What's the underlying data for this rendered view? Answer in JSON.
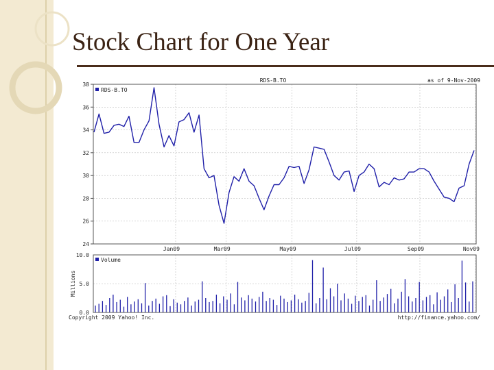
{
  "slide": {
    "title": "Stock Chart for One Year"
  },
  "chart_data": {
    "type": "line",
    "header_center": "RDS-B.TO",
    "header_right": "as of 9-Nov-2009",
    "legend_price": "RDS-B.TO",
    "legend_volume": "Volume",
    "footer_left": "Copyright 2009 Yahoo! Inc.",
    "footer_right": "http://finance.yahoo.com/",
    "price_axis": {
      "ylim": [
        24,
        38
      ],
      "ticks": [
        "38",
        "36",
        "34",
        "32",
        "30",
        "28",
        "26",
        "24"
      ],
      "tick_values": [
        38,
        36,
        34,
        32,
        30,
        28,
        26,
        24
      ]
    },
    "volume_axis": {
      "ylabel": "Millions",
      "ylim": [
        0,
        10
      ],
      "ticks": [
        "10.0",
        "5.0",
        "0.0"
      ],
      "tick_values": [
        10,
        5,
        0
      ]
    },
    "x_tick_labels": [
      "Jan09",
      "Mar09",
      "May09",
      "Jul09",
      "Sep09",
      "Nov09"
    ],
    "series": [
      {
        "values": [
          33.8,
          35.4,
          33.7,
          33.8,
          34.4,
          34.5,
          34.3,
          35.2,
          32.9,
          32.9,
          34.0,
          34.8,
          37.7,
          34.5,
          32.5,
          33.5,
          32.6,
          34.7,
          34.9,
          35.5,
          33.8,
          35.3,
          30.6,
          29.8,
          30.0,
          27.4,
          25.8,
          28.5,
          29.9,
          29.5,
          30.6,
          29.5,
          29.1,
          28.0,
          27.0,
          28.2,
          29.2,
          29.2,
          29.8,
          30.8,
          30.7,
          30.8,
          29.3,
          30.5,
          32.5,
          32.4,
          32.3,
          31.2,
          30.0,
          29.6,
          30.3,
          30.4,
          28.6,
          30.0,
          30.3,
          31.0,
          30.6,
          29.0,
          29.4,
          29.2,
          29.8,
          29.6,
          29.7,
          30.3,
          30.3,
          30.6,
          30.6,
          30.3,
          29.5,
          28.8,
          28.1,
          28.0,
          27.7,
          28.9,
          29.1,
          31.0,
          32.2
        ]
      }
    ],
    "volume_values": [
      1.2,
      1.5,
      2.0,
      1.3,
      2.5,
      3.1,
      1.8,
      2.2,
      1.0,
      2.7,
      1.4,
      1.9,
      2.3,
      1.6,
      5.1,
      1.2,
      2.0,
      2.4,
      1.5,
      2.8,
      3.0,
      1.1,
      2.3,
      1.7,
      1.4,
      2.0,
      2.6,
      1.2,
      1.9,
      2.2,
      5.4,
      2.5,
      1.8,
      2.0,
      3.1,
      1.6,
      2.8,
      2.2,
      3.3,
      1.4,
      5.3,
      2.6,
      2.1,
      3.0,
      2.4,
      1.9,
      2.7,
      3.6,
      2.0,
      2.5,
      2.2,
      1.3,
      2.9,
      2.4,
      1.8,
      2.1,
      3.1,
      2.3,
      1.7,
      2.0,
      3.4,
      9.1,
      1.6,
      2.5,
      7.8,
      2.3,
      4.2,
      2.8,
      5.0,
      2.1,
      3.3,
      2.4,
      1.5,
      2.9,
      2.0,
      2.7,
      3.0,
      1.2,
      2.2,
      5.6,
      2.0,
      2.6,
      3.2,
      4.1,
      1.6,
      2.4,
      3.6,
      5.8,
      2.8,
      1.9,
      2.5,
      5.3,
      2.1,
      2.7,
      3.0,
      1.4,
      3.5,
      2.2,
      2.8,
      4.0,
      1.8,
      4.9,
      2.5,
      9.0,
      5.2,
      1.9,
      5.4
    ]
  }
}
